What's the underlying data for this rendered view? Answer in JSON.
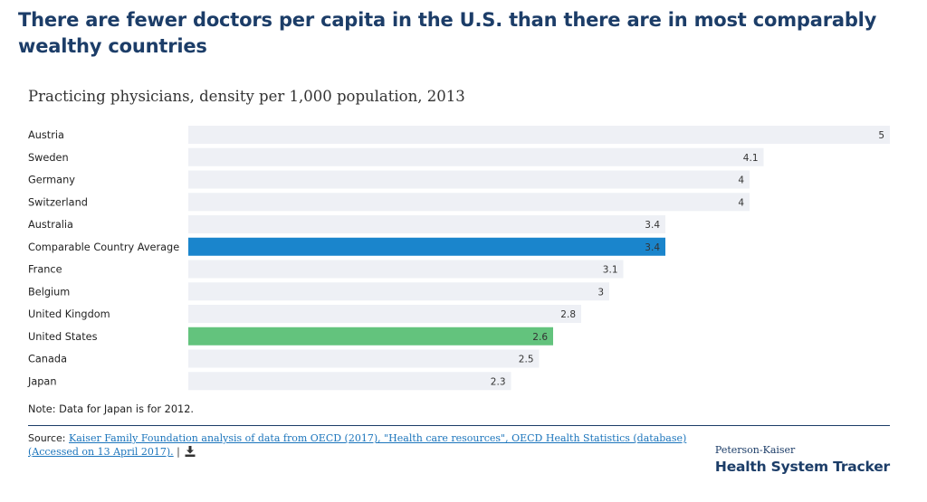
{
  "headline": "There are fewer doctors per capita in the U.S. than there are in most comparably wealthy countries",
  "chart_data": {
    "type": "bar",
    "orientation": "horizontal",
    "title": "Practicing physicians, density per 1,000 population, 2013",
    "categories": [
      "Austria",
      "Sweden",
      "Germany",
      "Switzerland",
      "Australia",
      "Comparable Country Average",
      "France",
      "Belgium",
      "United Kingdom",
      "United States",
      "Canada",
      "Japan"
    ],
    "values": [
      5,
      4.1,
      4,
      4,
      3.4,
      3.4,
      3.1,
      3,
      2.8,
      2.6,
      2.5,
      2.3
    ],
    "value_labels": [
      "5",
      "4.1",
      "4",
      "4",
      "3.4",
      "3.4",
      "3.1",
      "3",
      "2.8",
      "2.6",
      "2.5",
      "2.3"
    ],
    "xlim": [
      0,
      5
    ],
    "grid": false,
    "legend": "none",
    "colors": {
      "default": "#eef0f5",
      "Comparable Country Average": "#1a85cc",
      "United States": "#63c37d"
    }
  },
  "note": "Note: Data for Japan is for 2012.",
  "source": {
    "label": "Source:",
    "link_text": "Kaiser Family Foundation analysis of data from OECD (2017), \"Health care resources\", OECD Health Statistics (database) (Accessed on 13 April 2017).",
    "separator": "|",
    "download_icon": "download-icon"
  },
  "logo": {
    "top": "Peterson-Kaiser",
    "bottom": "Health System Tracker"
  }
}
